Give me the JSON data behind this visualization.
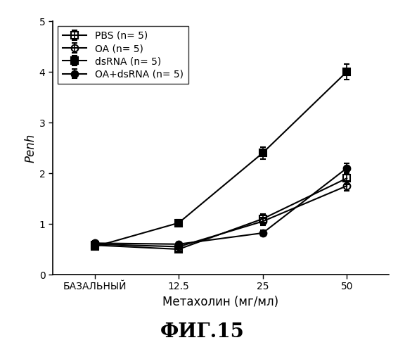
{
  "title": "ФИГ.15",
  "xlabel": "Метахолин (мг/мл)",
  "ylabel": "Penh",
  "x_positions": [
    0,
    1,
    2,
    3
  ],
  "x_tick_labels": [
    "БАЗАЛЬНЫЙ",
    "12.5",
    "25",
    "50"
  ],
  "ylim": [
    0,
    5
  ],
  "yticks": [
    0,
    1,
    2,
    3,
    4,
    5
  ],
  "series": [
    {
      "label": "PBS (n= 5)",
      "y": [
        0.58,
        0.5,
        1.1,
        1.9
      ],
      "yerr": [
        0.05,
        0.04,
        0.1,
        0.12
      ],
      "color": "#000000",
      "marker": "s",
      "fillstyle": "none",
      "linestyle": "-"
    },
    {
      "label": "OA (n= 5)",
      "y": [
        0.6,
        0.55,
        1.05,
        1.75
      ],
      "yerr": [
        0.05,
        0.04,
        0.08,
        0.1
      ],
      "color": "#000000",
      "marker": "o",
      "fillstyle": "none",
      "linestyle": "-"
    },
    {
      "label": "dsRNA (n= 5)",
      "y": [
        0.55,
        1.02,
        2.4,
        4.0
      ],
      "yerr": [
        0.04,
        0.06,
        0.12,
        0.15
      ],
      "color": "#000000",
      "marker": "s",
      "fillstyle": "full",
      "linestyle": "-"
    },
    {
      "label": "OA+dsRNA (n= 5)",
      "y": [
        0.62,
        0.6,
        0.82,
        2.1
      ],
      "yerr": [
        0.05,
        0.04,
        0.06,
        0.1
      ],
      "color": "#000000",
      "marker": "o",
      "fillstyle": "full",
      "linestyle": "-"
    }
  ],
  "background_color": "#ffffff",
  "legend_loc": "upper left",
  "fig_title_fontsize": 20,
  "axis_label_fontsize": 12,
  "tick_fontsize": 10,
  "legend_fontsize": 10,
  "markersize": 7,
  "linewidth": 1.5
}
